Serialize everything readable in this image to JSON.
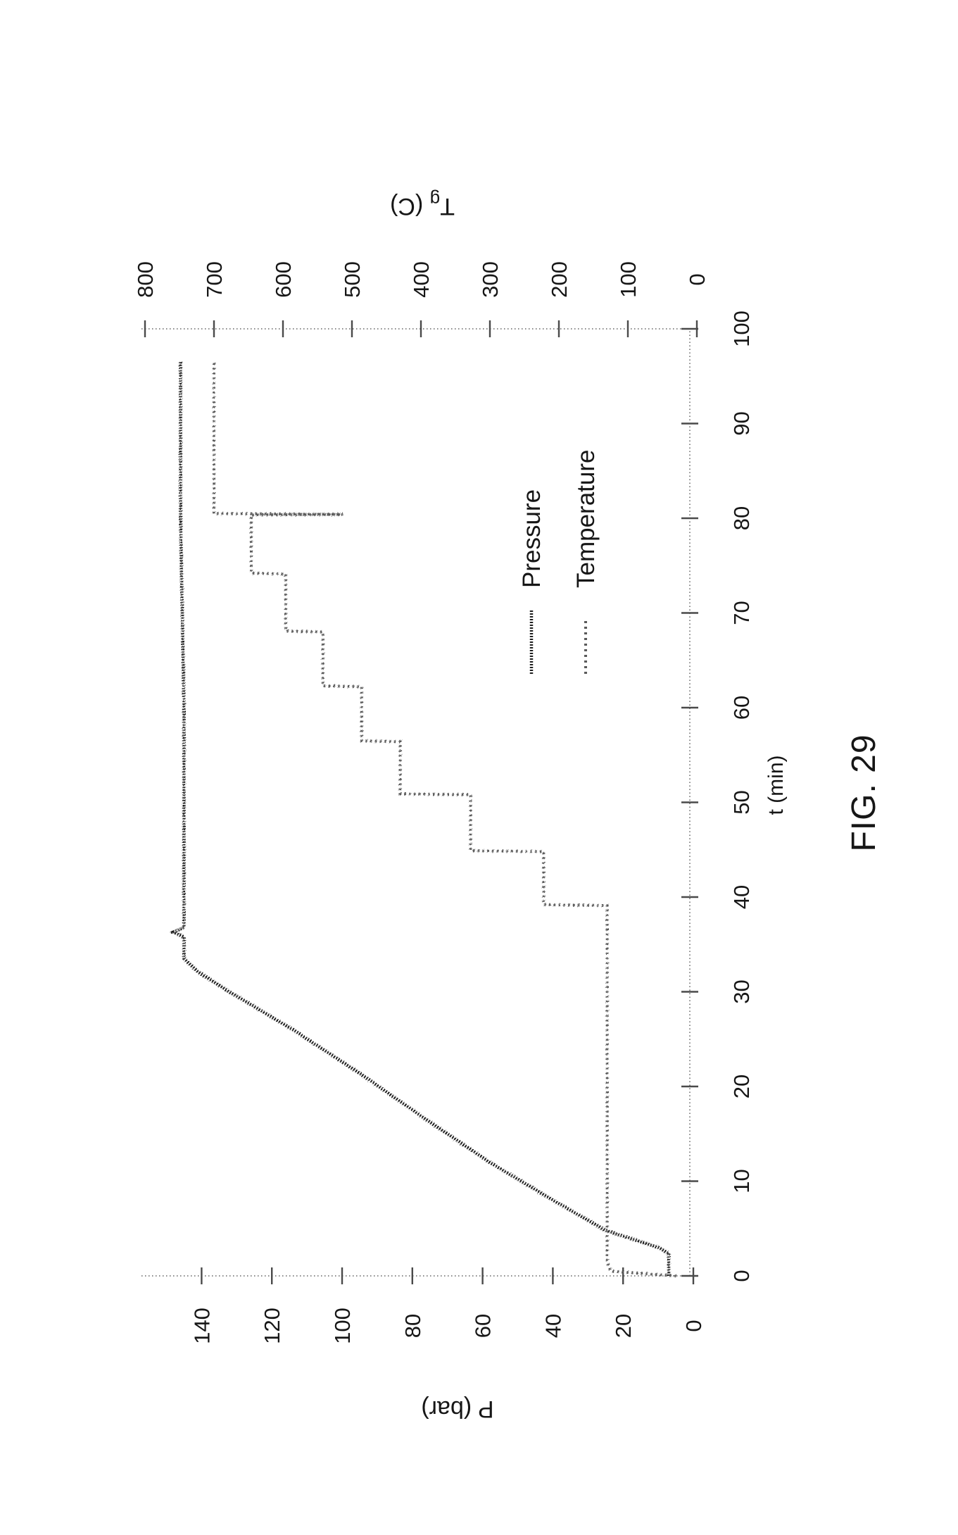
{
  "figure": {
    "caption": "FIG. 29"
  },
  "labels": {
    "x_axis": "t (min)",
    "p_axis": "P (bar)",
    "t_axis_main": "T",
    "t_axis_sub": "g",
    "t_axis_rest": " (C)",
    "legend_pressure": "Pressure",
    "legend_temperature": "Temperature"
  },
  "colors": {
    "pressure": "#1e1e1e",
    "temperature": "#5a5a5a",
    "axis": "#8a8a8a",
    "text": "#161616"
  },
  "chart_data": {
    "type": "line",
    "title": "",
    "xlabel": "t (min)",
    "ylabel_left": "P (bar)",
    "ylabel_right": "Tg (C)",
    "xlim": [
      0,
      100
    ],
    "ylim_left": [
      0,
      157
    ],
    "ylim_right": [
      0,
      805
    ],
    "x_ticks": [
      0,
      10,
      20,
      30,
      40,
      50,
      60,
      70,
      80,
      90,
      100
    ],
    "y_ticks_left": [
      0,
      20,
      40,
      60,
      80,
      100,
      120,
      140
    ],
    "y_ticks_right": [
      0,
      100,
      200,
      300,
      400,
      500,
      600,
      700,
      800
    ],
    "grid": false,
    "legend_position": "center-right",
    "orientation_note": "figure printed rotated 90 degrees counter-clockwise",
    "series": [
      {
        "name": "Pressure",
        "axis": "left",
        "unit": "bar",
        "style": "dense-dotted",
        "points": [
          [
            0,
            7
          ],
          [
            2.4,
            7
          ],
          [
            3,
            10
          ],
          [
            4.8,
            25
          ],
          [
            8,
            40
          ],
          [
            12,
            58
          ],
          [
            16.5,
            76
          ],
          [
            21.4,
            95
          ],
          [
            26,
            114
          ],
          [
            30.2,
            133
          ],
          [
            32.1,
            141
          ],
          [
            33.5,
            145
          ],
          [
            35.8,
            145
          ],
          [
            36.3,
            148
          ],
          [
            36.8,
            145
          ],
          [
            45,
            145
          ],
          [
            60,
            145
          ],
          [
            80,
            146
          ],
          [
            96.6,
            146
          ]
        ]
      },
      {
        "name": "Temperature",
        "axis": "right",
        "unit": "C",
        "style": "sparse-dashed",
        "points": [
          [
            0,
            30
          ],
          [
            0.5,
            125
          ],
          [
            1.5,
            130
          ],
          [
            39.1,
            130
          ],
          [
            39.2,
            222
          ],
          [
            44.8,
            222
          ],
          [
            44.9,
            328
          ],
          [
            50.8,
            328
          ],
          [
            50.9,
            430
          ],
          [
            56.4,
            430
          ],
          [
            56.5,
            486
          ],
          [
            62.2,
            486
          ],
          [
            62.3,
            542
          ],
          [
            68.0,
            542
          ],
          [
            68.1,
            596
          ],
          [
            74.1,
            596
          ],
          [
            74.2,
            646
          ],
          [
            80.35,
            646
          ],
          [
            80.4,
            513
          ],
          [
            80.5,
            700
          ],
          [
            96.7,
            700
          ]
        ]
      }
    ]
  }
}
